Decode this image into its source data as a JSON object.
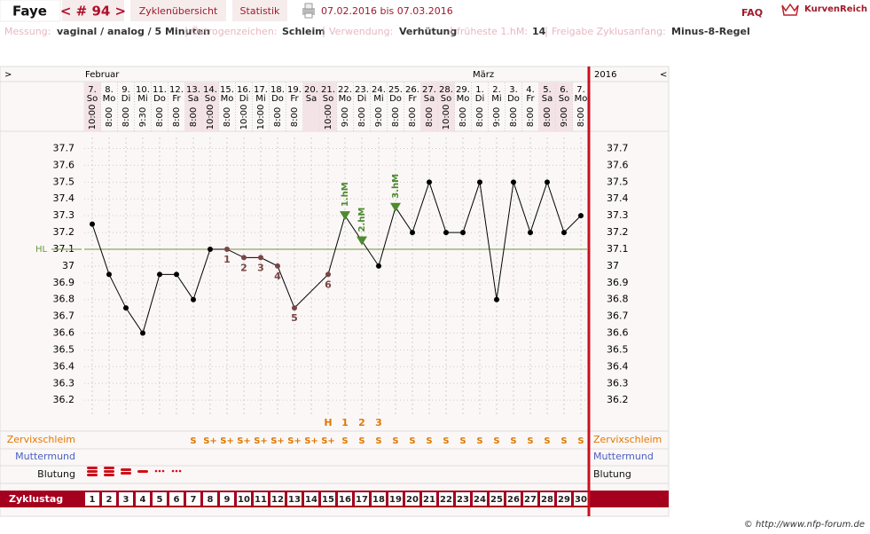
{
  "header": {
    "name": "Faye",
    "cycle": "< # 94 >",
    "tabs": [
      "Zyklenübersicht",
      "Statistik"
    ],
    "range": "07.02.2016 bis 07.03.2016",
    "faq": "FAQ",
    "brand": "KurvenReich"
  },
  "settings": [
    {
      "label": "Messung:",
      "value": "vaginal / analog / 5 Minuten"
    },
    {
      "label": "Östrogenzeichen:",
      "value": "Schleim"
    },
    {
      "label": "Verwendung:",
      "value": "Verhütung"
    },
    {
      "label": "früheste 1.hM:",
      "value": 14
    },
    {
      "label": "Freigabe Zyklusanfang:",
      "value": "Minus-8-Regel"
    }
  ],
  "chart_data": {
    "type": "line",
    "nav": {
      "prev": ">",
      "next": "<"
    },
    "year": "2016",
    "months": [
      {
        "label": "Februar",
        "day": 1
      },
      {
        "label": "März",
        "day": 24
      }
    ],
    "dates": [
      "7.",
      "8.",
      "9.",
      "10.",
      "11.",
      "12.",
      "13.",
      "14.",
      "15.",
      "16.",
      "17.",
      "18.",
      "19.",
      "20.",
      "21.",
      "22.",
      "23.",
      "24.",
      "25.",
      "26.",
      "27.",
      "28.",
      "29.",
      "1.",
      "2.",
      "3.",
      "4.",
      "5.",
      "6.",
      "7."
    ],
    "weekdays": [
      "So",
      "Mo",
      "Di",
      "Mi",
      "Do",
      "Fr",
      "Sa",
      "So",
      "Mo",
      "Di",
      "Mi",
      "Do",
      "Fr",
      "Sa",
      "So",
      "Mo",
      "Di",
      "Mi",
      "Do",
      "Fr",
      "Sa",
      "So",
      "Mo",
      "Di",
      "Mi",
      "Do",
      "Fr",
      "Sa",
      "So",
      "Mo"
    ],
    "times": [
      "10:00",
      "8:00",
      "8:00",
      "9:30",
      "8:00",
      "8:00",
      "8:00",
      "10:00",
      "8:00",
      "10:00",
      "10:00",
      "8:00",
      "8:00",
      null,
      "10:00",
      "9:00",
      "8:00",
      "9:00",
      "8:00",
      "8:00",
      "8:00",
      "10:00",
      "8:00",
      "8:00",
      "9:00",
      "8:00",
      "8:00",
      "8:00",
      "9:00",
      "8:00"
    ],
    "cycle_days": [
      1,
      2,
      3,
      4,
      5,
      6,
      7,
      8,
      9,
      10,
      11,
      12,
      13,
      14,
      15,
      16,
      17,
      18,
      19,
      20,
      21,
      22,
      23,
      24,
      25,
      26,
      27,
      28,
      29,
      30
    ],
    "xlim": [
      0.5,
      30.5
    ],
    "x": [
      1,
      2,
      3,
      4,
      5,
      6,
      7,
      8,
      9,
      10,
      11,
      12,
      13,
      15,
      16,
      17,
      18,
      19,
      20,
      21,
      22,
      23,
      24,
      25,
      26,
      27,
      28,
      29,
      30
    ],
    "values": [
      37.25,
      36.95,
      36.75,
      36.6,
      36.95,
      36.95,
      36.8,
      37.1,
      37.1,
      37.05,
      37.05,
      37.0,
      36.75,
      36.95,
      37.3,
      37.15,
      37.0,
      37.35,
      37.2,
      37.5,
      37.2,
      37.2,
      37.5,
      36.8,
      37.5,
      37.2,
      37.5,
      37.2,
      37.3
    ],
    "color": "#000000",
    "ylim": [
      36.0,
      37.8
    ],
    "yticks": [
      36.2,
      36.3,
      36.4,
      36.5,
      36.6,
      36.7,
      36.8,
      36.9,
      37,
      37.1,
      37.2,
      37.3,
      37.4,
      37.5,
      37.6,
      37.7
    ],
    "grid": true,
    "coverline": {
      "value": 37.1,
      "label": "HL",
      "color": "#6a9a3a"
    },
    "low_marks": {
      "x": [
        9,
        10,
        11,
        12,
        13,
        15
      ],
      "labels": [
        1,
        2,
        3,
        4,
        5,
        6
      ],
      "color": "#7a4545"
    },
    "high_marks": {
      "x": [
        16,
        17,
        19
      ],
      "labels": [
        "1.hM",
        "2.hM",
        "3.hM"
      ],
      "color": "#4e8a2e"
    },
    "peak_marks": {
      "x": [
        15,
        16,
        17,
        18
      ],
      "labels": [
        "H",
        1,
        2,
        3
      ],
      "color": "#e07800"
    },
    "cervix": {
      "label": "Zervixschleim",
      "color": "#e07800",
      "x": [
        7,
        8,
        9,
        10,
        11,
        12,
        13,
        14,
        15,
        16,
        17,
        18,
        19,
        20,
        21,
        22,
        23,
        24,
        25,
        26,
        27,
        28,
        29,
        30
      ],
      "labels": [
        "S",
        "S+",
        "S+",
        "S+",
        "S+",
        "S+",
        "S+",
        "S+",
        "S+",
        "S",
        "S",
        "S",
        "S",
        "S",
        "S",
        "S",
        "S",
        "S",
        "S",
        "S",
        "S",
        "S",
        "S",
        "S"
      ]
    },
    "os": {
      "label": "Muttermund",
      "color": "#4a5fc1"
    },
    "bleeding": {
      "label": "Blutung",
      "color": "#d0101a",
      "x": [
        1,
        2,
        3,
        4,
        5,
        6
      ],
      "values": [
        4,
        4,
        3,
        2,
        1,
        1
      ]
    },
    "cycle_label": "Zyklustag"
  },
  "footer": "© http://www.nfp-forum.de"
}
